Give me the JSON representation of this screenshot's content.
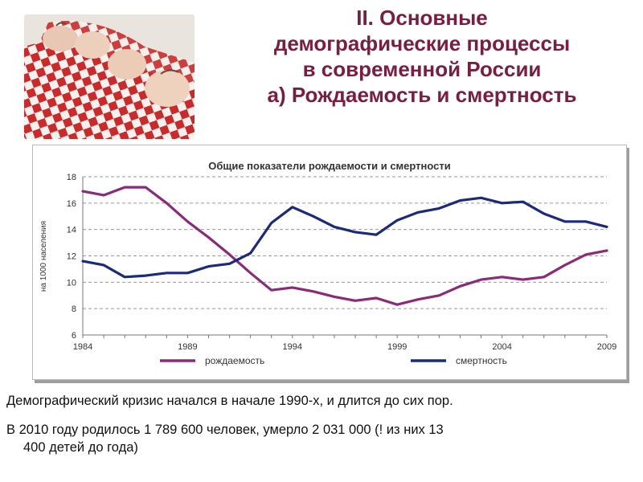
{
  "title": {
    "line1": "II. Основные",
    "line2": "демографические процессы",
    "line3": "в современной России",
    "line4": "а) Рождаемость и смертность"
  },
  "colors": {
    "title": "#7a1d3e",
    "birth": "#8b2a78",
    "death": "#1a2a7c",
    "checker_red": "#cc2a2a"
  },
  "chart_data": {
    "type": "line",
    "title": "Общие показатели рождаемости и смертности",
    "xlabel": "",
    "ylabel": "на 1000 населения",
    "xlim": [
      1984,
      2009
    ],
    "ylim": [
      6,
      18
    ],
    "x_ticks": [
      "1984",
      "1989",
      "1994",
      "1999",
      "2004",
      "2009"
    ],
    "y_ticks": [
      "6",
      "8",
      "10",
      "12",
      "14",
      "16",
      "18"
    ],
    "grid": "horizontal-dashed",
    "legend": "bottom",
    "x": [
      1984,
      1985,
      1986,
      1987,
      1988,
      1989,
      1990,
      1991,
      1992,
      1993,
      1994,
      1995,
      1996,
      1997,
      1998,
      1999,
      2000,
      2001,
      2002,
      2003,
      2004,
      2005,
      2006,
      2007,
      2008,
      2009
    ],
    "series": [
      {
        "name": "рождаемость",
        "color": "#8b2a78",
        "values": [
          16.9,
          16.6,
          17.2,
          17.2,
          16.0,
          14.6,
          13.4,
          12.1,
          10.7,
          9.4,
          9.6,
          9.3,
          8.9,
          8.6,
          8.8,
          8.3,
          8.7,
          9.0,
          9.7,
          10.2,
          10.4,
          10.2,
          10.4,
          11.3,
          12.1,
          12.4
        ]
      },
      {
        "name": "смертность",
        "color": "#1a2a7c",
        "values": [
          11.6,
          11.3,
          10.4,
          10.5,
          10.7,
          10.7,
          11.2,
          11.4,
          12.2,
          14.5,
          15.7,
          15.0,
          14.2,
          13.8,
          13.6,
          14.7,
          15.3,
          15.6,
          16.2,
          16.4,
          16.0,
          16.1,
          15.2,
          14.6,
          14.6,
          14.2
        ]
      }
    ]
  },
  "notes": {
    "line1": "Демографический кризис начался в начале 1990-х, и длится до сих пор.",
    "line2a": "В 2010 году родилось 1 789 600 человек, умерло 2 031 000      (! из них 13",
    "line2b": "400 детей до года)"
  }
}
